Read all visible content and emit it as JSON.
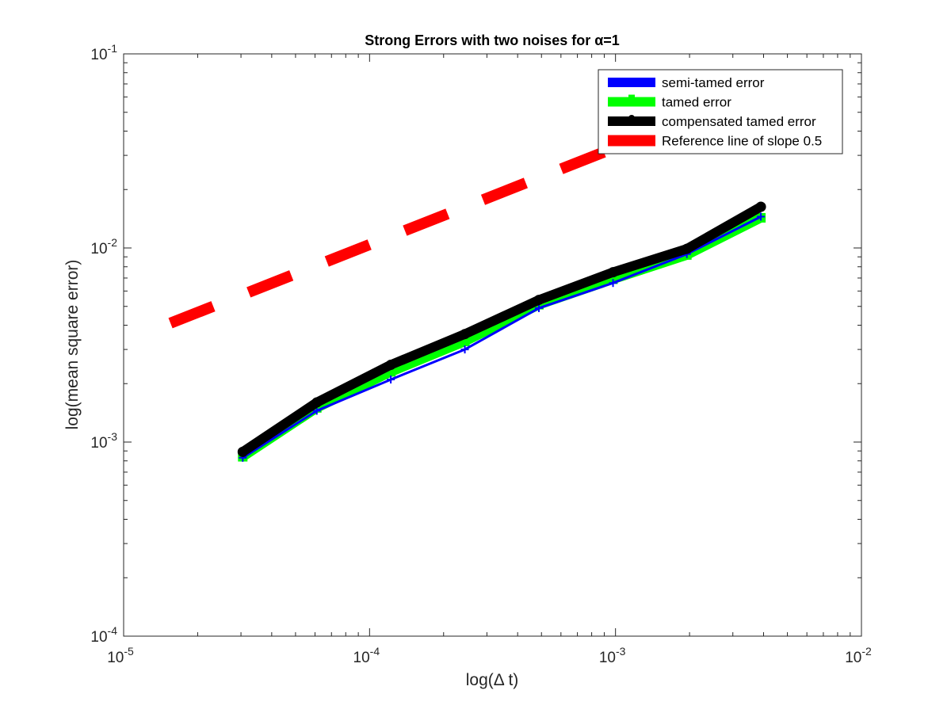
{
  "chart_data": {
    "type": "line",
    "title": "Strong Errors with two noises for α=1",
    "xlabel": "log(Δ t)",
    "ylabel": "log(mean square error)",
    "xscale": "log",
    "yscale": "log",
    "xlim": [
      1e-05,
      0.01
    ],
    "ylim": [
      0.0001,
      0.1
    ],
    "x_ticks": [
      {
        "value": 1e-05,
        "base": "10",
        "exp": "-5"
      },
      {
        "value": 0.0001,
        "base": "10",
        "exp": "-4"
      },
      {
        "value": 0.001,
        "base": "10",
        "exp": "-3"
      },
      {
        "value": 0.01,
        "base": "10",
        "exp": "-2"
      }
    ],
    "y_ticks": [
      {
        "value": 0.0001,
        "base": "10",
        "exp": "-4"
      },
      {
        "value": 0.001,
        "base": "10",
        "exp": "-3"
      },
      {
        "value": 0.01,
        "base": "10",
        "exp": "-2"
      },
      {
        "value": 0.1,
        "base": "10",
        "exp": "-1"
      }
    ],
    "grid": false,
    "box": true,
    "legend_position": "top-right",
    "series": [
      {
        "name": "semi-tamed error",
        "color": "#0000ff",
        "style": "solid",
        "marker": "plus",
        "x": [
          3.05e-05,
          6.1e-05,
          0.000122,
          0.000244,
          0.000488,
          0.000977,
          0.00195,
          0.0039
        ],
        "y": [
          0.00083,
          0.00145,
          0.0021,
          0.003,
          0.0049,
          0.0066,
          0.0093,
          0.0145
        ]
      },
      {
        "name": "tamed error",
        "color": "#00ff00",
        "style": "solid",
        "marker": "square",
        "x": [
          3.05e-05,
          6.1e-05,
          0.000122,
          0.000244,
          0.000488,
          0.000977,
          0.00195,
          0.0039
        ],
        "y": [
          0.00084,
          0.0015,
          0.0023,
          0.0033,
          0.0051,
          0.0069,
          0.0092,
          0.0143
        ]
      },
      {
        "name": "compensated tamed error",
        "color": "#000000",
        "style": "solid",
        "marker": "circle",
        "x": [
          3.05e-05,
          6.1e-05,
          0.000122,
          0.000244,
          0.000488,
          0.000977,
          0.00195,
          0.0039
        ],
        "y": [
          0.00089,
          0.0016,
          0.0025,
          0.0036,
          0.0054,
          0.0075,
          0.0099,
          0.0163
        ]
      },
      {
        "name": "Reference line of slope 0.5",
        "color": "#ff0000",
        "style": "dashed",
        "marker": "none",
        "x": [
          1.55e-05,
          0.0039
        ],
        "y": [
          0.0041,
          0.065
        ]
      }
    ]
  }
}
